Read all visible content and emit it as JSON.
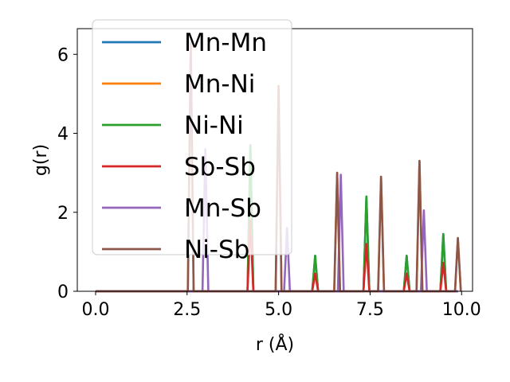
{
  "chart_data": {
    "type": "line",
    "title": "",
    "xlabel": "r (Å)",
    "ylabel": "g(r)",
    "xlim": [
      -0.5,
      10.3
    ],
    "ylim": [
      0,
      6.65
    ],
    "xticks": [
      0.0,
      2.5,
      5.0,
      7.5,
      10.0
    ],
    "xtick_labels": [
      "0.0",
      "2.5",
      "5.0",
      "7.5",
      "10.0"
    ],
    "yticks": [
      0,
      2,
      4,
      6
    ],
    "ytick_labels": [
      "0",
      "2",
      "4",
      "6"
    ],
    "grid": false,
    "legend_position": "upper-left",
    "peak_halfwidth": 0.08,
    "series": [
      {
        "name": "Mn-Mn",
        "color": "#1f77b4",
        "peaks": [
          [
            4.23,
            3.7
          ],
          [
            6.0,
            0.9
          ],
          [
            7.4,
            2.4
          ],
          [
            8.5,
            0.9
          ],
          [
            9.5,
            1.45
          ]
        ]
      },
      {
        "name": "Mn-Ni",
        "color": "#ff7f0e",
        "peaks": [
          [
            2.6,
            6.3
          ],
          [
            5.0,
            5.2
          ],
          [
            6.6,
            3.0
          ],
          [
            7.8,
            2.9
          ],
          [
            8.85,
            3.3
          ],
          [
            9.9,
            1.35
          ]
        ]
      },
      {
        "name": "Ni-Ni",
        "color": "#2ca02c",
        "peaks": [
          [
            4.23,
            3.7
          ],
          [
            6.0,
            0.9
          ],
          [
            7.4,
            2.4
          ],
          [
            8.5,
            0.9
          ],
          [
            9.5,
            1.45
          ]
        ]
      },
      {
        "name": "Sb-Sb",
        "color": "#d62728",
        "peaks": [
          [
            4.23,
            1.8
          ],
          [
            6.0,
            0.45
          ],
          [
            7.4,
            1.2
          ],
          [
            8.5,
            0.45
          ],
          [
            9.5,
            0.72
          ]
        ]
      },
      {
        "name": "Mn-Sb",
        "color": "#9467bd",
        "peaks": [
          [
            3.0,
            3.6
          ],
          [
            5.23,
            1.6
          ],
          [
            6.7,
            2.95
          ],
          [
            8.97,
            2.05
          ]
        ]
      },
      {
        "name": "Ni-Sb",
        "color": "#8c564b",
        "peaks": [
          [
            2.6,
            6.3
          ],
          [
            5.0,
            5.2
          ],
          [
            6.6,
            3.0
          ],
          [
            7.8,
            2.9
          ],
          [
            8.85,
            3.3
          ],
          [
            9.9,
            1.35
          ]
        ]
      }
    ]
  }
}
